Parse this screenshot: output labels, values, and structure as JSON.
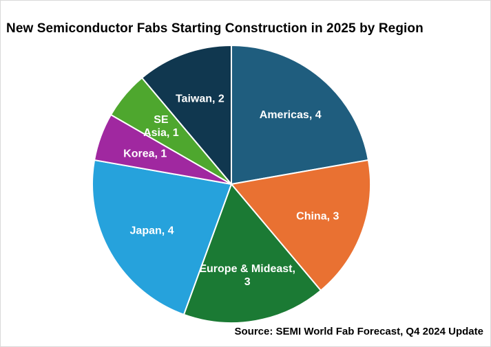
{
  "chart_data": {
    "type": "pie",
    "title": "New Semiconductor Fabs Starting Construction in 2025 by Region",
    "source": "Source: SEMI World Fab Forecast, Q4 2024 Update",
    "slices": [
      {
        "name": "Americas",
        "value": 4,
        "color": "#1f5d7e",
        "label_lines": [
          "Americas, 4"
        ]
      },
      {
        "name": "China",
        "value": 3,
        "color": "#e97132",
        "label_lines": [
          "China, 3"
        ]
      },
      {
        "name": "Europe & Mideast",
        "value": 3,
        "color": "#1b7a34",
        "label_lines": [
          "Europe & Mideast,",
          "3"
        ]
      },
      {
        "name": "Japan",
        "value": 4,
        "color": "#26a2dc",
        "label_lines": [
          "Japan, 4"
        ]
      },
      {
        "name": "Korea",
        "value": 1,
        "color": "#a028a0",
        "label_lines": [
          "Korea, 1"
        ]
      },
      {
        "name": "SE Asia",
        "value": 1,
        "color": "#4ea72e",
        "label_lines": [
          "SE",
          "Asia, 1"
        ]
      },
      {
        "name": "Taiwan",
        "value": 2,
        "color": "#10374f",
        "label_lines": [
          "Taiwan, 2"
        ]
      }
    ],
    "legend": "none",
    "data_labels": "inside"
  }
}
